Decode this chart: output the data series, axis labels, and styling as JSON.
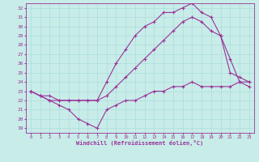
{
  "xlabel": "Windchill (Refroidissement éolien,°C)",
  "bg_color": "#c8ece8",
  "line_color": "#993399",
  "grid_color": "#aadddd",
  "xlim": [
    -0.5,
    23.5
  ],
  "ylim": [
    18.5,
    32.5
  ],
  "xticks": [
    0,
    1,
    2,
    3,
    4,
    5,
    6,
    7,
    8,
    9,
    10,
    11,
    12,
    13,
    14,
    15,
    16,
    17,
    18,
    19,
    20,
    21,
    22,
    23
  ],
  "yticks": [
    19,
    20,
    21,
    22,
    23,
    24,
    25,
    26,
    27,
    28,
    29,
    30,
    31,
    32
  ],
  "curve1_x": [
    0,
    1,
    2,
    3,
    4,
    5,
    6,
    7,
    8,
    9,
    10,
    11,
    12,
    13,
    14,
    15,
    16,
    17,
    18,
    19,
    20,
    21,
    22,
    23
  ],
  "curve1_y": [
    23.0,
    22.5,
    22.0,
    21.5,
    21.0,
    20.0,
    19.5,
    19.0,
    21.0,
    21.5,
    22.0,
    22.0,
    22.5,
    23.0,
    23.0,
    23.5,
    23.5,
    24.0,
    23.5,
    23.5,
    23.5,
    23.5,
    24.0,
    24.0
  ],
  "curve2_x": [
    0,
    1,
    2,
    3,
    4,
    5,
    6,
    7,
    8,
    9,
    10,
    11,
    12,
    13,
    14,
    15,
    16,
    17,
    18,
    19,
    20,
    21,
    22,
    23
  ],
  "curve2_y": [
    23.0,
    22.5,
    22.5,
    22.0,
    22.0,
    22.0,
    22.0,
    22.0,
    24.0,
    26.0,
    27.5,
    29.0,
    30.0,
    30.5,
    31.5,
    31.5,
    32.0,
    32.5,
    31.5,
    31.0,
    29.0,
    25.0,
    24.5,
    24.0
  ],
  "curve3_x": [
    0,
    1,
    2,
    3,
    4,
    5,
    6,
    7,
    8,
    9,
    10,
    11,
    12,
    13,
    14,
    15,
    16,
    17,
    18,
    19,
    20,
    21,
    22,
    23
  ],
  "curve3_y": [
    23.0,
    22.5,
    22.0,
    22.0,
    22.0,
    22.0,
    22.0,
    22.0,
    22.5,
    23.5,
    24.5,
    25.5,
    26.5,
    27.5,
    28.5,
    29.5,
    30.5,
    31.0,
    30.5,
    29.5,
    29.0,
    26.5,
    24.0,
    23.5
  ],
  "markersize": 3,
  "linewidth": 0.8
}
